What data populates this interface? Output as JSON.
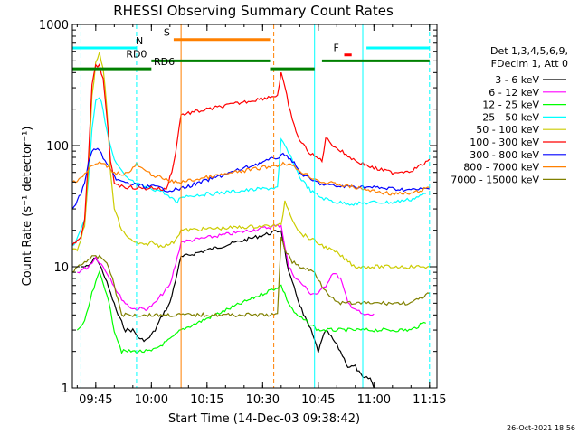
{
  "chart_data": {
    "type": "line",
    "title": "RHESSI Observing Summary Count Rates",
    "xlabel": "Start Time (14-Dec-03 09:38:42)",
    "ylabel": "Count Rate (s⁻¹ detector⁻¹)",
    "x_ticks": [
      "09:45",
      "10:00",
      "10:15",
      "10:30",
      "10:45",
      "11:00",
      "11:15"
    ],
    "x_range": [
      "09:38:42",
      "11:17:00"
    ],
    "y_ticks": [
      "1",
      "10",
      "100",
      "1000"
    ],
    "ylim": [
      1,
      1000
    ],
    "y_scale": "log",
    "legend_header": [
      "Det 1,3,4,5,6,9,",
      "FDecim 1, Att 0"
    ],
    "legend_position": "right",
    "timestamp": "26-Oct-2021 18:56",
    "series": [
      {
        "name": "3 - 6 keV",
        "color": "#000000",
        "x": [
          "09:41",
          "09:43",
          "09:45",
          "09:47",
          "09:49",
          "09:51",
          "09:53",
          "09:55",
          "09:57",
          "09:59",
          "10:01",
          "10:03",
          "10:05",
          "10:07",
          "10:08",
          "10:35",
          "10:37",
          "10:39",
          "10:41",
          "10:43",
          "10:45",
          "10:47",
          "10:49",
          "10:51",
          "10:53",
          "10:55",
          "10:57",
          "10:59",
          "11:00"
        ],
        "values": [
          10,
          10,
          12,
          9,
          6,
          4,
          3,
          3,
          2.5,
          2.5,
          3,
          4,
          5,
          9,
          12,
          20,
          9,
          6,
          4,
          3,
          2,
          3,
          2.5,
          2,
          1.5,
          1.5,
          1.2,
          1.2,
          1
        ]
      },
      {
        "name": "6 - 12 keV",
        "color": "#ff00ff",
        "x": [
          "09:40",
          "09:43",
          "09:45",
          "09:47",
          "09:49",
          "09:51",
          "09:53",
          "09:55",
          "09:57",
          "09:59",
          "10:01",
          "10:03",
          "10:05",
          "10:07",
          "10:08",
          "10:35",
          "10:37",
          "10:39",
          "10:41",
          "10:43",
          "10:45",
          "10:47",
          "10:49",
          "10:51",
          "10:53",
          "10:55",
          "10:57",
          "11:00"
        ],
        "values": [
          9,
          10,
          12,
          10,
          8,
          6,
          5,
          4.5,
          4.5,
          4.5,
          5,
          6,
          7,
          12,
          16,
          22,
          10,
          8,
          7,
          6,
          6,
          7,
          9,
          8,
          5,
          4.5,
          4,
          4
        ]
      },
      {
        "name": "12 - 25 keV",
        "color": "#00ff00",
        "x": [
          "09:40",
          "09:42",
          "09:44",
          "09:46",
          "09:48",
          "09:50",
          "09:52",
          "09:55",
          "10:00",
          "10:05",
          "10:08",
          "10:35",
          "10:37",
          "10:39",
          "10:42",
          "10:45",
          "10:50",
          "10:55",
          "11:00",
          "11:05",
          "11:10",
          "11:14"
        ],
        "values": [
          3,
          3.5,
          6,
          9,
          6,
          3,
          2,
          2,
          2,
          2.5,
          3,
          7,
          5,
          4,
          3.5,
          3,
          3,
          3,
          3,
          3,
          3,
          3.5
        ]
      },
      {
        "name": "25 - 50 keV",
        "color": "#00ffff",
        "x": [
          "09:38:42",
          "09:40",
          "09:42",
          "09:43",
          "09:44",
          "09:45",
          "09:46",
          "09:47",
          "09:48",
          "09:50",
          "09:53",
          "09:56",
          "10:00",
          "10:03",
          "10:05",
          "10:07",
          "10:08",
          "10:34",
          "10:35",
          "10:36",
          "10:38",
          "10:40",
          "10:43",
          "10:46",
          "10:50",
          "10:55",
          "11:00",
          "11:05",
          "11:10",
          "11:14"
        ],
        "values": [
          15,
          17,
          25,
          50,
          140,
          240,
          250,
          200,
          130,
          75,
          55,
          48,
          44,
          42,
          37,
          34,
          38,
          45,
          110,
          100,
          75,
          55,
          42,
          37,
          34,
          33,
          34,
          34,
          36,
          40
        ]
      },
      {
        "name": "50 - 100 keV",
        "color": "#cccc00",
        "x": [
          "09:38:42",
          "09:40",
          "09:41",
          "09:42",
          "09:43",
          "09:44",
          "09:45",
          "09:46",
          "09:47",
          "09:48",
          "09:49",
          "09:50",
          "09:52",
          "09:55",
          "09:58",
          "10:00",
          "10:02",
          "10:04",
          "10:06",
          "10:08",
          "10:35",
          "10:36",
          "10:38",
          "10:40",
          "10:43",
          "10:46",
          "10:50",
          "10:55",
          "11:00",
          "11:05",
          "11:10",
          "11:15"
        ],
        "values": [
          14,
          14,
          17,
          22,
          60,
          250,
          470,
          580,
          440,
          200,
          60,
          30,
          20,
          16,
          15,
          16,
          15,
          15,
          16,
          20,
          22,
          35,
          25,
          19,
          17,
          15,
          13,
          10,
          10,
          10,
          10,
          10
        ]
      },
      {
        "name": "100 - 300 keV",
        "color": "#ff0000",
        "x": [
          "09:38:42",
          "09:40",
          "09:41",
          "09:42",
          "09:43",
          "09:44",
          "09:45",
          "09:46",
          "09:47",
          "09:48",
          "09:49",
          "09:50",
          "09:52",
          "09:55",
          "09:58",
          "10:00",
          "10:02",
          "10:04",
          "10:06",
          "10:08",
          "10:34",
          "10:35",
          "10:36",
          "10:38",
          "10:40",
          "10:43",
          "10:46",
          "10:47",
          "10:50",
          "10:55",
          "11:00",
          "11:05",
          "11:10",
          "11:15"
        ],
        "values": [
          15,
          16,
          18,
          25,
          75,
          320,
          450,
          460,
          350,
          170,
          75,
          50,
          46,
          45,
          44,
          45,
          44,
          43,
          70,
          180,
          260,
          390,
          300,
          160,
          110,
          85,
          75,
          115,
          95,
          75,
          65,
          60,
          62,
          75
        ]
      },
      {
        "name": "300 - 800 keV",
        "color": "#0000ff",
        "x": [
          "09:38:42",
          "09:40",
          "09:41",
          "09:42",
          "09:43",
          "09:44",
          "09:45",
          "09:46",
          "09:47",
          "09:48",
          "09:50",
          "09:52",
          "09:55",
          "09:58",
          "10:00",
          "10:02",
          "10:04",
          "10:06",
          "10:08",
          "10:34",
          "10:35",
          "10:36",
          "10:38",
          "10:40",
          "10:43",
          "10:46",
          "10:50",
          "10:55",
          "11:00",
          "11:05",
          "11:10",
          "11:15"
        ],
        "values": [
          30,
          35,
          40,
          50,
          70,
          90,
          95,
          90,
          80,
          70,
          55,
          50,
          48,
          46,
          46,
          45,
          43,
          43,
          44,
          80,
          82,
          85,
          75,
          60,
          52,
          48,
          46,
          46,
          45,
          44,
          43,
          44
        ]
      },
      {
        "name": "800 - 7000 keV",
        "color": "#ff8000",
        "x": [
          "09:38:42",
          "09:40",
          "09:42",
          "09:44",
          "09:46",
          "09:48",
          "09:50",
          "09:52",
          "09:54",
          "09:56",
          "09:58",
          "10:00",
          "10:02",
          "10:04",
          "10:06",
          "10:08",
          "10:35",
          "10:36",
          "10:38",
          "10:40",
          "10:43",
          "10:46",
          "10:50",
          "10:55",
          "11:00",
          "11:05",
          "11:10",
          "11:15"
        ],
        "values": [
          50,
          52,
          58,
          68,
          72,
          68,
          60,
          58,
          60,
          70,
          62,
          58,
          55,
          52,
          50,
          50,
          70,
          72,
          68,
          62,
          55,
          50,
          48,
          45,
          42,
          40,
          40,
          45
        ]
      },
      {
        "name": "7000 - 15000 keV",
        "color": "#808000",
        "x": [
          "09:38:42",
          "09:40",
          "09:42",
          "09:44",
          "09:46",
          "09:48",
          "09:50",
          "09:52",
          "09:55",
          "10:00",
          "10:05",
          "10:08",
          "10:34",
          "10:35",
          "10:36",
          "10:38",
          "10:40",
          "10:42",
          "10:44",
          "10:46",
          "10:50",
          "10:55",
          "11:00",
          "11:05",
          "11:10",
          "11:15"
        ],
        "values": [
          9,
          10,
          11,
          12,
          12,
          11,
          7,
          4,
          4,
          4,
          4,
          4,
          4,
          18,
          14,
          11,
          10,
          9.5,
          9,
          7,
          5,
          5,
          5,
          5,
          5,
          6
        ]
      }
    ],
    "state_bars": [
      {
        "label": "N",
        "color": "#00ffff",
        "segments": [
          [
            "09:38:42",
            "09:56"
          ],
          [
            "10:58",
            "11:15"
          ]
        ],
        "level": 640
      },
      {
        "label": "S",
        "color": "#ff8000",
        "segments": [
          [
            "10:06",
            "10:32"
          ]
        ],
        "level": 750
      },
      {
        "label": "F",
        "color": "#ff0000",
        "segments": [
          [
            "10:52",
            "10:54"
          ]
        ],
        "level": 560
      },
      {
        "label": "RD0",
        "color": "#008000",
        "segments": [
          [
            "10:00",
            "10:32"
          ],
          [
            "10:46",
            "11:15"
          ]
        ],
        "level": 500
      },
      {
        "label": "RD6",
        "color": "#008000",
        "segments": [
          [
            "09:38:42",
            "10:00"
          ],
          [
            "10:32",
            "10:44"
          ]
        ],
        "level": 430
      }
    ],
    "vlines": [
      {
        "time": "09:41",
        "color": "#00ffff",
        "style": "dashed"
      },
      {
        "time": "09:56",
        "color": "#00ffff",
        "style": "dashed"
      },
      {
        "time": "10:08",
        "color": "#ff8000",
        "style": "solid"
      },
      {
        "time": "10:33",
        "color": "#ff8000",
        "style": "dashed"
      },
      {
        "time": "10:44",
        "color": "#00ffff",
        "style": "solid"
      },
      {
        "time": "10:57",
        "color": "#00ffff",
        "style": "solid"
      },
      {
        "time": "11:15",
        "color": "#00ffff",
        "style": "dashed"
      }
    ]
  }
}
